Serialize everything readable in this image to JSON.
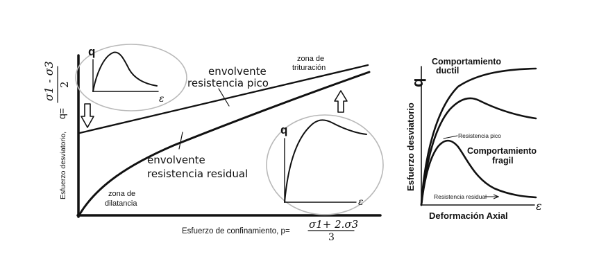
{
  "left_diagram": {
    "y_axis_label": "Esfuerzo desviatorio,",
    "y_axis_symbol": "q=",
    "y_axis_numerator": "σ1 - σ3",
    "y_axis_denominator": "2",
    "x_axis_label": "Esfuerzo de confinamiento, p=",
    "x_axis_numerator": "σ1+ 2.σ3",
    "x_axis_denominator": "3",
    "peak_envelope_label_line1": "envolvente",
    "peak_envelope_label_line2": "resistencia pico",
    "residual_envelope_label_line1": "envolvente",
    "residual_envelope_label_line2": "resistencia residual",
    "crushing_zone_line1": "zona de",
    "crushing_zone_line2": "trituración",
    "dilatancy_zone_line1": "zona de",
    "dilatancy_zone_line2": "dilatancia",
    "inset_small_q": "q",
    "inset_small_eps": "ε",
    "inset_large_q": "q",
    "inset_large_eps": "ε"
  },
  "right_diagram": {
    "y_axis_label": "Esfuerzo desviatorio",
    "y_axis_symbol": "q",
    "x_axis_label": "Deformación Axial",
    "x_axis_symbol": "ε",
    "ductile_label_line1": "Comportamiento",
    "ductile_label_line2": "ductil",
    "peak_label": "Resistencia pico",
    "fragile_label_line1": "Comportamiento",
    "fragile_label_line2": "fragil",
    "residual_label": "Resistencia residual"
  }
}
